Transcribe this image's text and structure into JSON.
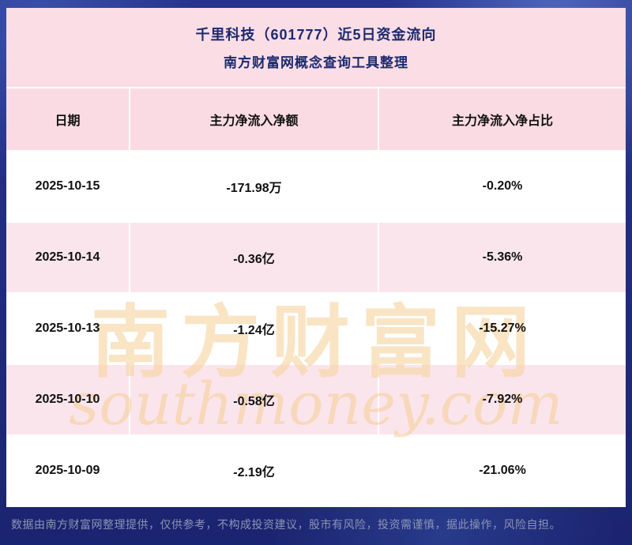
{
  "chart_data": {
    "type": "table",
    "title": "千里科技（601777）近5日资金流向",
    "subtitle": "南方财富网概念查询工具整理",
    "columns": [
      "日期",
      "主力净流入净额",
      "主力净流入净占比"
    ],
    "rows": [
      [
        "2025-10-15",
        "-171.98万",
        "-0.20%"
      ],
      [
        "2025-10-14",
        "-0.36亿",
        "-5.36%"
      ],
      [
        "2025-10-13",
        "-1.24亿",
        "-15.27%"
      ],
      [
        "2025-10-10",
        "-0.58亿",
        "-7.92%"
      ],
      [
        "2025-10-09",
        "-2.19亿",
        "-21.06%"
      ]
    ]
  },
  "watermark": {
    "line1": "南方财富网",
    "line2": "southmoney.com"
  },
  "footer": {
    "disclaimer": "数据由南方财富网整理提供，仅供参考，不构成投资建议，股市有风险，投资需谨慎，据此操作，风险自担。"
  },
  "colors": {
    "background_blue": "#1f2b7e",
    "panel_pink": "#fbdde6",
    "header_pink": "#fadbe4",
    "row_pink": "#fbe5ec",
    "row_white": "#ffffff",
    "title_text": "#1b2a6e",
    "table_text": "#111111",
    "watermark": "#f6d4a0",
    "footer_text": "#8d94b4"
  }
}
